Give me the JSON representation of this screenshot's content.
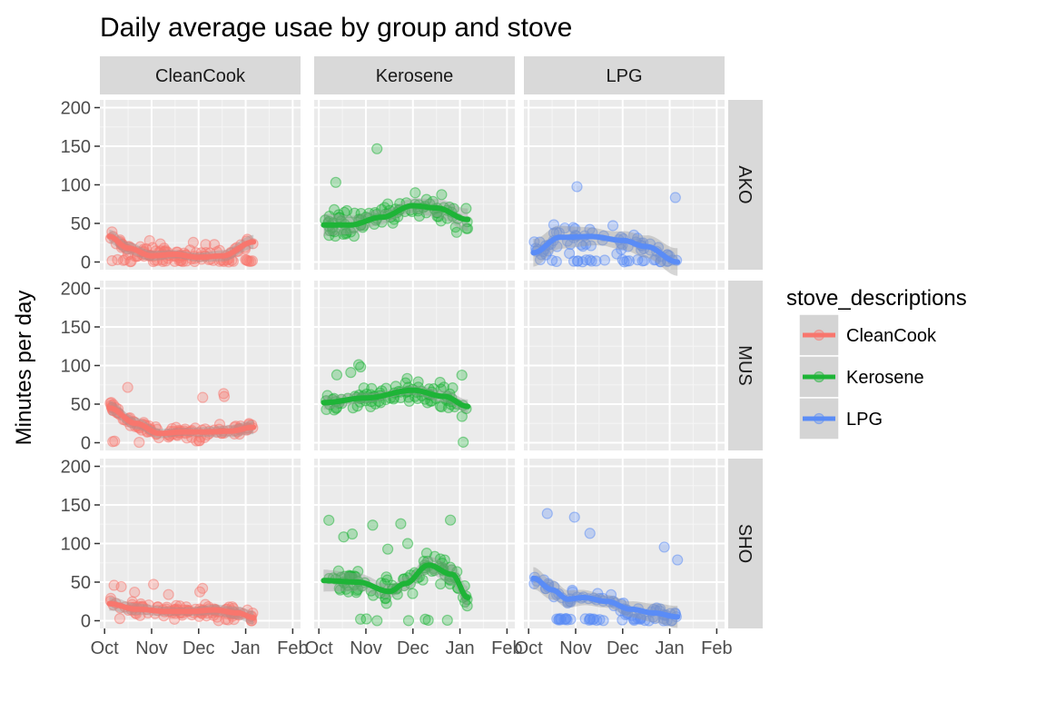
{
  "chart_data": {
    "type": "scatter",
    "title": "Daily average usae by group and stove",
    "ylabel": "Minutes per day",
    "xlabel": "",
    "ylim": [
      0,
      200
    ],
    "y_ticks": [
      0,
      50,
      100,
      150,
      200
    ],
    "x_ticks": [
      "Oct",
      "Nov",
      "Dec",
      "Jan",
      "Feb"
    ],
    "facet_cols": [
      "CleanCook",
      "Kerosene",
      "LPG"
    ],
    "facet_rows": [
      "AKO",
      "MUS",
      "SHO"
    ],
    "grid": true,
    "legend": {
      "title": "stove_descriptions",
      "placement": "right",
      "entries": [
        {
          "name": "CleanCook",
          "color": "#f8766d"
        },
        {
          "name": "Kerosene",
          "color": "#1eb437"
        },
        {
          "name": "LPG",
          "color": "#5a8cf6"
        }
      ]
    },
    "panels": [
      {
        "row": "AKO",
        "col": "CleanCook",
        "seed": 11,
        "range": [
          3,
          95
        ],
        "density": 1.4,
        "trend": [
          [
            3,
            33
          ],
          [
            15,
            18
          ],
          [
            30,
            8
          ],
          [
            45,
            10
          ],
          [
            60,
            6
          ],
          [
            75,
            8
          ],
          [
            95,
            26
          ]
        ],
        "noise": 12,
        "spread": [
          -15,
          25
        ],
        "zeroFrac": 0.25
      },
      {
        "row": "AKO",
        "col": "Kerosene",
        "seed": 23,
        "range": [
          3,
          95
        ],
        "density": 1.1,
        "trend": [
          [
            3,
            48
          ],
          [
            20,
            48
          ],
          [
            40,
            58
          ],
          [
            60,
            73
          ],
          [
            75,
            70
          ],
          [
            95,
            55
          ]
        ],
        "noise": 28,
        "spread": [
          -40,
          90
        ],
        "zeroFrac": 0,
        "band": 8
      },
      {
        "row": "AKO",
        "col": "LPG",
        "seed": 37,
        "range": [
          3,
          95
        ],
        "density": 1.0,
        "trend": [
          [
            3,
            12
          ],
          [
            20,
            32
          ],
          [
            40,
            33
          ],
          [
            60,
            28
          ],
          [
            75,
            20
          ],
          [
            95,
            0
          ]
        ],
        "noise": 25,
        "spread": [
          -30,
          100
        ],
        "zeroFrac": 0.35,
        "band": 10
      },
      {
        "row": "MUS",
        "col": "CleanCook",
        "seed": 41,
        "range": [
          3,
          95
        ],
        "density": 1.3,
        "trend": [
          [
            3,
            45
          ],
          [
            20,
            25
          ],
          [
            35,
            12
          ],
          [
            50,
            14
          ],
          [
            65,
            14
          ],
          [
            80,
            15
          ],
          [
            95,
            20
          ]
        ],
        "noise": 12,
        "spread": [
          -15,
          60
        ],
        "zeroFrac": 0.05
      },
      {
        "row": "MUS",
        "col": "Kerosene",
        "seed": 53,
        "range": [
          3,
          95
        ],
        "density": 1.1,
        "trend": [
          [
            3,
            52
          ],
          [
            30,
            58
          ],
          [
            60,
            68
          ],
          [
            80,
            60
          ],
          [
            95,
            47
          ]
        ],
        "noise": 22,
        "spread": [
          -50,
          50
        ],
        "zeroFrac": 0.02
      },
      {
        "row": "SHO",
        "col": "CleanCook",
        "seed": 61,
        "range": [
          3,
          95
        ],
        "density": 1.3,
        "trend": [
          [
            3,
            22
          ],
          [
            20,
            15
          ],
          [
            40,
            12
          ],
          [
            55,
            12
          ],
          [
            70,
            14
          ],
          [
            85,
            10
          ],
          [
            95,
            4
          ]
        ],
        "noise": 12,
        "spread": [
          -12,
          40
        ],
        "zeroFrac": 0.08
      },
      {
        "row": "SHO",
        "col": "Kerosene",
        "seed": 73,
        "range": [
          3,
          95
        ],
        "density": 1.2,
        "trend": [
          [
            3,
            52
          ],
          [
            25,
            50
          ],
          [
            45,
            38
          ],
          [
            55,
            48
          ],
          [
            70,
            72
          ],
          [
            85,
            60
          ],
          [
            95,
            30
          ]
        ],
        "noise": 25,
        "spread": [
          -50,
          80
        ],
        "zeroFrac": 0.08,
        "band": 8
      },
      {
        "row": "SHO",
        "col": "LPG",
        "seed": 89,
        "range": [
          3,
          95
        ],
        "density": 1.1,
        "trend": [
          [
            3,
            55
          ],
          [
            15,
            40
          ],
          [
            25,
            28
          ],
          [
            35,
            30
          ],
          [
            50,
            25
          ],
          [
            65,
            15
          ],
          [
            80,
            10
          ],
          [
            95,
            5
          ]
        ],
        "noise": 18,
        "spread": [
          -20,
          110
        ],
        "zeroFrac": 0.35,
        "band": 8
      }
    ]
  }
}
